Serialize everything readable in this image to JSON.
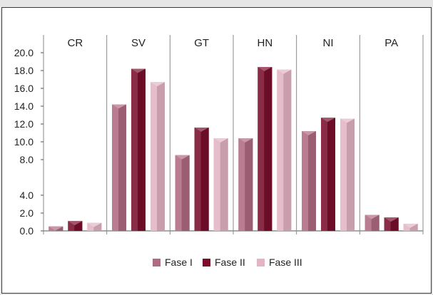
{
  "chart_data": {
    "type": "bar",
    "categories": [
      "CR",
      "SV",
      "GT",
      "HN",
      "NI",
      "PA"
    ],
    "series": [
      {
        "name": "Fase I",
        "values": [
          0.5,
          14.2,
          8.5,
          10.4,
          11.2,
          1.8
        ],
        "color": "#b06a82"
      },
      {
        "name": "Fase II",
        "values": [
          1.1,
          18.2,
          11.6,
          18.4,
          12.7,
          1.5
        ],
        "color": "#7a0f2c"
      },
      {
        "name": "Fase III",
        "values": [
          0.9,
          16.7,
          10.4,
          18.1,
          12.6,
          0.8
        ],
        "color": "#e3b4c3"
      }
    ],
    "y_ticks": [
      "20.0",
      "18.0",
      "16.0",
      "14.0",
      "12.0",
      "10.0",
      "8.0",
      "4.0",
      "2.0",
      "0.0"
    ],
    "ylim": [
      0,
      20
    ],
    "grid": false,
    "legend_position": "bottom",
    "category_labels_position": "top",
    "title": "",
    "xlabel": "",
    "ylabel": ""
  }
}
